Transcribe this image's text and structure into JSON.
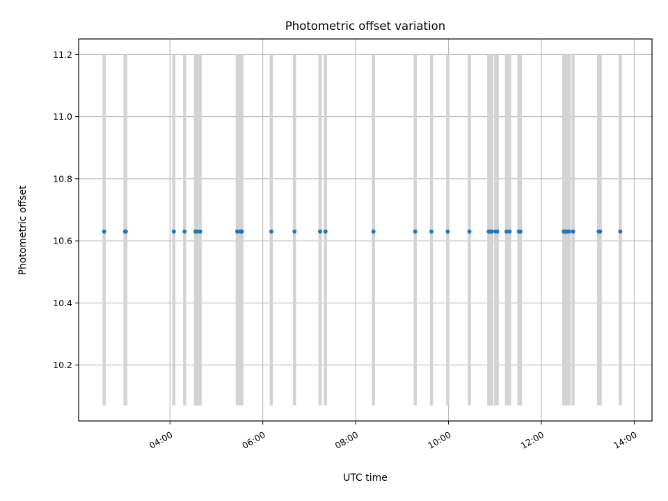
{
  "chart_data": {
    "type": "scatter",
    "title": "Photometric offset variation",
    "xlabel": "UTC time",
    "ylabel": "Photometric offset",
    "grid": true,
    "xlim": [
      "02:02",
      "14:23"
    ],
    "ylim": [
      10.02,
      11.25
    ],
    "x_ticks": [
      "04:00",
      "06:00",
      "08:00",
      "10:00",
      "12:00",
      "14:00"
    ],
    "y_ticks": [
      10.2,
      10.4,
      10.6,
      10.8,
      11.0,
      11.2
    ],
    "marker_color": "#1f77b4",
    "band_color": "#d3d3d3",
    "band_range": [
      10.07,
      11.2
    ],
    "points": [
      {
        "x": "02:35",
        "y": 10.63
      },
      {
        "x": "03:02",
        "y": 10.63
      },
      {
        "x": "03:03",
        "y": 10.63
      },
      {
        "x": "04:05",
        "y": 10.63
      },
      {
        "x": "04:19",
        "y": 10.63
      },
      {
        "x": "04:33",
        "y": 10.63
      },
      {
        "x": "04:35",
        "y": 10.63
      },
      {
        "x": "04:39",
        "y": 10.63
      },
      {
        "x": "05:27",
        "y": 10.63
      },
      {
        "x": "05:31",
        "y": 10.63
      },
      {
        "x": "05:33",
        "y": 10.63
      },
      {
        "x": "06:11",
        "y": 10.63
      },
      {
        "x": "06:41",
        "y": 10.63
      },
      {
        "x": "07:14",
        "y": 10.63
      },
      {
        "x": "07:21",
        "y": 10.63
      },
      {
        "x": "08:23",
        "y": 10.63
      },
      {
        "x": "09:17",
        "y": 10.63
      },
      {
        "x": "09:38",
        "y": 10.63
      },
      {
        "x": "09:59",
        "y": 10.63
      },
      {
        "x": "10:27",
        "y": 10.63
      },
      {
        "x": "10:52",
        "y": 10.63
      },
      {
        "x": "10:54",
        "y": 10.63
      },
      {
        "x": "10:56",
        "y": 10.63
      },
      {
        "x": "11:01",
        "y": 10.63
      },
      {
        "x": "11:03",
        "y": 10.63
      },
      {
        "x": "11:15",
        "y": 10.63
      },
      {
        "x": "11:19",
        "y": 10.63
      },
      {
        "x": "11:31",
        "y": 10.63
      },
      {
        "x": "11:33",
        "y": 10.63
      },
      {
        "x": "12:29",
        "y": 10.63
      },
      {
        "x": "12:31",
        "y": 10.63
      },
      {
        "x": "12:33",
        "y": 10.63
      },
      {
        "x": "12:36",
        "y": 10.63
      },
      {
        "x": "12:41",
        "y": 10.63
      },
      {
        "x": "13:14",
        "y": 10.63
      },
      {
        "x": "13:16",
        "y": 10.63
      },
      {
        "x": "13:42",
        "y": 10.63
      }
    ]
  }
}
